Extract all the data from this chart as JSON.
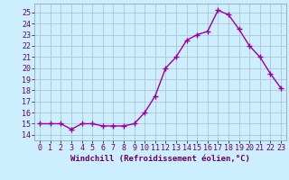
{
  "x": [
    0,
    1,
    2,
    3,
    4,
    5,
    6,
    7,
    8,
    9,
    10,
    11,
    12,
    13,
    14,
    15,
    16,
    17,
    18,
    19,
    20,
    21,
    22,
    23
  ],
  "y": [
    15.0,
    15.0,
    15.0,
    14.5,
    15.0,
    15.0,
    14.8,
    14.8,
    14.8,
    15.0,
    16.0,
    17.5,
    20.0,
    21.0,
    22.5,
    23.0,
    23.3,
    25.2,
    24.8,
    23.5,
    22.0,
    21.0,
    19.5,
    18.2
  ],
  "line_color": "#990099",
  "marker": "+",
  "marker_size": 4,
  "marker_linewidth": 1.0,
  "xlabel": "Windchill (Refroidissement éolien,°C)",
  "xlim": [
    -0.5,
    23.5
  ],
  "ylim": [
    13.5,
    25.8
  ],
  "yticks": [
    14,
    15,
    16,
    17,
    18,
    19,
    20,
    21,
    22,
    23,
    24,
    25
  ],
  "xticks": [
    0,
    1,
    2,
    3,
    4,
    5,
    6,
    7,
    8,
    9,
    10,
    11,
    12,
    13,
    14,
    15,
    16,
    17,
    18,
    19,
    20,
    21,
    22,
    23
  ],
  "background_color": "#cceeff",
  "grid_color": "#aabbcc",
  "label_fontsize": 6.5,
  "tick_fontsize": 6,
  "line_width": 1.0
}
